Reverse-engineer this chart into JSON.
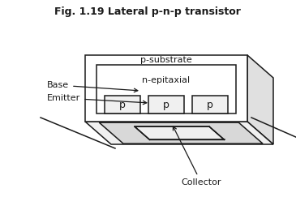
{
  "title": "Fig. 1.19 Lateral p-n-p transistor",
  "label_collector": "Collector",
  "label_emitter": "Emitter",
  "label_base": "Base",
  "label_n_epi": "n-epitaxial",
  "label_p_sub": "p-substrate",
  "label_p": "p",
  "bg_color": "#ffffff",
  "line_color": "#1a1a1a",
  "top_face_color": "#f0f0f0",
  "right_face_color": "#e0e0e0",
  "front_face_color": "#ffffff",
  "collector_plate_color": "#d8d8d8"
}
